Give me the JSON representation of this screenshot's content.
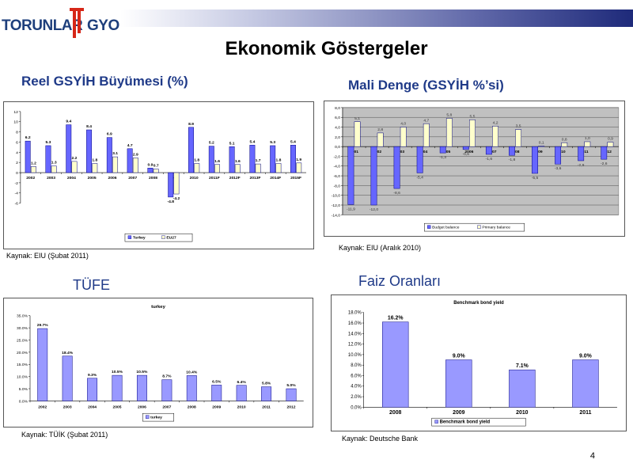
{
  "logo": {
    "left_text": "TORUNLAR",
    "right_text": "GYO"
  },
  "page_title": "Ekonomik Göstergeler",
  "page_number": "4",
  "colors": {
    "turkey": "#6666ff",
    "eu27": "#ffffcc",
    "navy": "#1f3a88",
    "plot_gray": "#c0c0c0",
    "bar_outline": "#000080"
  },
  "sections": {
    "growth": {
      "heading": "Reel GSYİH Büyümesi (%)",
      "source": "Kaynak: EIU (Şubat 2011)"
    },
    "fiscal": {
      "heading": "Mali Denge (GSYİH %’si)",
      "source": "Kaynak: EIU (Aralık 2010)"
    },
    "cpi": {
      "heading": "TÜFE",
      "source": "Kaynak: TÜİK (Şubat 2011)"
    },
    "rates": {
      "heading": "Faiz Oranları",
      "source": "Kaynak: Deutsche Bank"
    }
  },
  "chart_data": [
    {
      "type": "bar",
      "categories": [
        "2002",
        "2003",
        "2004",
        "2005",
        "2006",
        "2007",
        "2008",
        "2009",
        "2010",
        "2011F",
        "2012F",
        "2013F",
        "2014F",
        "2015F"
      ],
      "series": [
        {
          "name": "Turkey",
          "values": [
            6.2,
            5.3,
            9.4,
            8.4,
            6.9,
            4.7,
            0.9,
            -4.8,
            8.9,
            5.2,
            5.1,
            5.4,
            5.3,
            5.4
          ],
          "labels": [
            "6.2",
            "5.3",
            "9.4",
            "8.4",
            "6.9",
            "4.7",
            "0.9",
            "-4.8",
            "8.9",
            "5.2",
            "5.1",
            "5.4",
            "5.3",
            "5.4"
          ]
        },
        {
          "name": "EU27",
          "values": [
            1.2,
            1.3,
            2.2,
            1.8,
            3.1,
            2.9,
            0.7,
            -4.2,
            1.8,
            1.6,
            1.6,
            1.7,
            1.8,
            1.9
          ],
          "labels": [
            "1.2",
            "1.3",
            "2.2",
            "1.8",
            "3.1",
            "2.9",
            "0.7",
            "-4.2",
            "1.8",
            "1.6",
            "1.6",
            "1.7",
            "1.8",
            "1.9"
          ]
        }
      ],
      "yticks": [
        "12",
        "10",
        "8",
        "6",
        "4",
        "2",
        "0",
        "-2",
        "-4",
        "-6"
      ],
      "ylim": [
        -6,
        12
      ],
      "legend": "bottom"
    },
    {
      "type": "bar",
      "categories": [
        "2001",
        "2002",
        "2003",
        "2004",
        "2005",
        "2006",
        "2007",
        "2008",
        "2009",
        "2010",
        "2011",
        "2012"
      ],
      "series": [
        {
          "name": "Budget balance",
          "values": [
            -11.9,
            -12.0,
            -8.6,
            -5.4,
            -1.3,
            -0.6,
            -1.6,
            -1.8,
            -5.5,
            -3.6,
            -2.9,
            -2.6
          ],
          "labels": [
            "-11,9",
            "-12,0",
            "-8,6",
            "-5,4",
            "-1,3",
            "-0,6",
            "-1,6",
            "-1,8",
            "-5,5",
            "-3,6",
            "-2,9",
            "-2,6"
          ]
        },
        {
          "name": "Primary balance",
          "values": [
            5.1,
            2.8,
            4.0,
            4.7,
            5.8,
            5.5,
            4.2,
            3.5,
            0.1,
            0.8,
            1.0,
            0.9
          ],
          "labels": [
            "5,1",
            "2,8",
            "4,0",
            "4,7",
            "5,8",
            "5,5",
            "4,2",
            "3,5",
            "0,1",
            "0,8",
            "1,0",
            "0,9"
          ]
        }
      ],
      "yticks": [
        "8,0",
        "6,0",
        "4,0",
        "2,0",
        "0,0",
        "-2,0",
        "-4,0",
        "-6,0",
        "-8,0",
        "-10,0",
        "-12,0",
        "-14,0"
      ],
      "ylim": [
        -14,
        8
      ],
      "legend": "bottom"
    },
    {
      "type": "bar",
      "title": "turkey",
      "categories": [
        "2002",
        "2003",
        "2004",
        "2005",
        "2006",
        "2007",
        "2008",
        "2009",
        "2010",
        "2011",
        "2012"
      ],
      "series": [
        {
          "name": "turkey",
          "values": [
            29.7,
            18.4,
            9.3,
            10.5,
            10.5,
            8.7,
            10.4,
            6.5,
            6.4,
            5.8,
            5.0
          ],
          "labels": [
            "29.7%",
            "18.4%",
            "9.3%",
            "10.5%",
            "10.5%",
            "8.7%",
            "10.4%",
            "6.5%",
            "6.4%",
            "5.8%",
            "5.0%"
          ]
        }
      ],
      "yticks": [
        "35.0%",
        "30.0%",
        "25.0%",
        "20.0%",
        "15.0%",
        "10.0%",
        "5.0%",
        "0.0%"
      ],
      "ylim": [
        0,
        35
      ],
      "legend": "bottom"
    },
    {
      "type": "bar",
      "title": "Benchmark bond yield",
      "categories": [
        "2008",
        "2009",
        "2010",
        "2011"
      ],
      "series": [
        {
          "name": "Benchmark bond yield",
          "values": [
            16.2,
            9.0,
            7.1,
            9.0
          ],
          "labels": [
            "16.2%",
            "9.0%",
            "7.1%",
            "9.0%"
          ]
        }
      ],
      "yticks": [
        "18.0%",
        "16.0%",
        "14.0%",
        "12.0%",
        "10.0%",
        "8.0%",
        "6.0%",
        "4.0%",
        "2.0%",
        "0.0%"
      ],
      "ylim": [
        0,
        18
      ],
      "legend": "bottom"
    }
  ]
}
